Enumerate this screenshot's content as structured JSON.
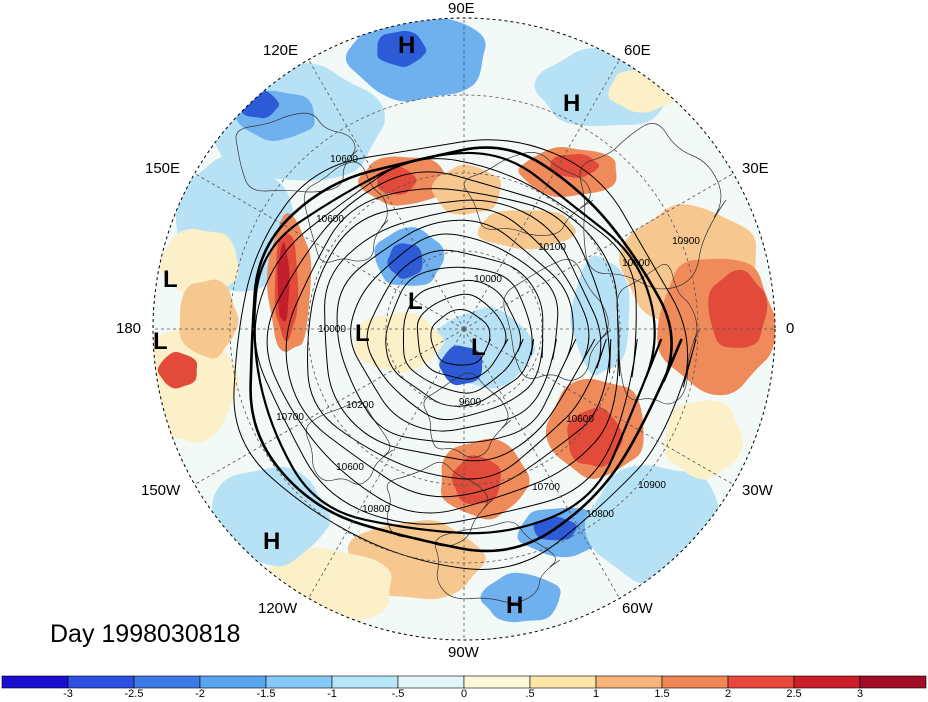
{
  "title": "Day 1998030818",
  "longitude_labels": [
    "90E",
    "60E",
    "30E",
    "0",
    "30W",
    "60W",
    "90W",
    "120W",
    "150W",
    "180",
    "150E",
    "120E"
  ],
  "pressure_centers": [
    "H",
    "H",
    "L",
    "L",
    "L",
    "L",
    "L",
    "H",
    "H"
  ],
  "contour_labels": [
    "10600",
    "10600",
    "10100",
    "10000",
    "10900",
    "10800",
    "10600",
    "10700",
    "10800",
    "10900",
    "10200",
    "10600",
    "10800",
    "10700",
    "10000",
    "9600"
  ],
  "colorbar": {
    "tick_labels": [
      "-3",
      "-2.5",
      "-2",
      "-1.5",
      "-1",
      "-.5",
      "0",
      ".5",
      "1",
      "1.5",
      "2",
      "2.5",
      "3"
    ],
    "colors": [
      "#1a0fd1",
      "#2f4fe0",
      "#3d7ae6",
      "#5aa4f0",
      "#86c8f7",
      "#b6e6f8",
      "#e2f6fa",
      "#fdf8d9",
      "#fbe6a8",
      "#f6b47a",
      "#f08656",
      "#e8493a",
      "#cc1d2a",
      "#a10d25"
    ]
  },
  "shading_colors": {
    "deep_blue": "#2d5bd8",
    "mid_blue": "#6fb0ef",
    "light_blue": "#b7e2f6",
    "pale": "#eef9fb",
    "cream": "#fbf0c8",
    "tan": "#f6c890",
    "orange": "#ef8a5a",
    "red": "#e24a3a",
    "dark_red": "#c21f2c"
  }
}
